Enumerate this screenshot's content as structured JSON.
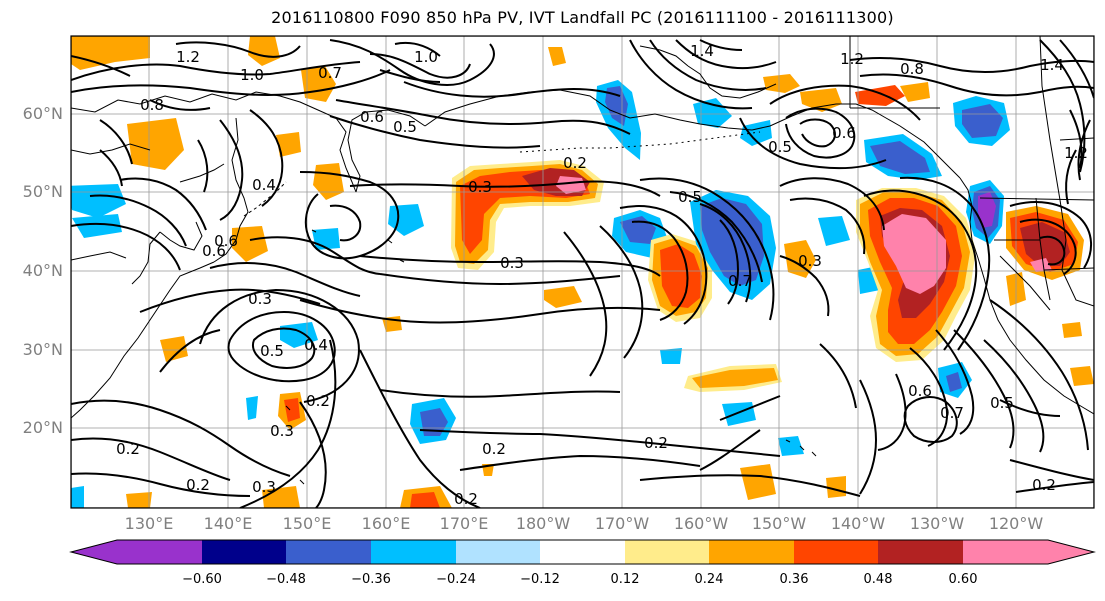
{
  "title": "2016110800 F090 850 hPa PV, IVT Landfall PC (2016111100 - 2016111300)",
  "lat_labels": [
    "60°N",
    "50°N",
    "40°N",
    "30°N",
    "20°N"
  ],
  "lon_labels": [
    "130°E",
    "140°E",
    "150°E",
    "160°E",
    "170°E",
    "180°W",
    "170°W",
    "160°W",
    "150°W",
    "140°W",
    "130°W",
    "120°W"
  ],
  "contour_labels": [
    "1.2",
    "1.0",
    "0.7",
    "1.0",
    "1.4",
    "1.2",
    "0.8",
    "1.4",
    "0.8",
    "0.6",
    "0.5",
    "0.5",
    "0.6",
    "0.3",
    "0.2",
    "0.5",
    "0.3",
    "0.4",
    "0.3",
    "0.6",
    "0.3",
    "0.5",
    "0.4",
    "0.2",
    "0.3",
    "0.2",
    "0.3",
    "0.2",
    "0.2",
    "0.2",
    "0.2",
    "0.7",
    "0.5",
    "0.2",
    "0.7",
    "0.6",
    "0.6",
    "1.2"
  ],
  "colorbar": {
    "ticks": [
      "−0.60",
      "−0.48",
      "−0.36",
      "−0.24",
      "−0.12",
      "0.12",
      "0.24",
      "0.36",
      "0.48",
      "0.60"
    ],
    "colors": [
      "#9932cc",
      "#00008b",
      "#3a5fcd",
      "#00bfff",
      "#b0e2ff",
      "#ffffff",
      "#ffec8b",
      "#ffa500",
      "#ff4500",
      "#b22222",
      "#ff82ab"
    ]
  },
  "colors": {
    "neg_0_12": "#b0e2ff",
    "neg_0_24": "#00bfff",
    "neg_0_36": "#3a5fcd",
    "neg_0_48": "#00008b",
    "neg_0_60": "#9932cc",
    "pos_0_12": "#ffec8b",
    "pos_0_24": "#ffa500",
    "pos_0_36": "#ff4500",
    "pos_0_48": "#b22222",
    "pos_0_60": "#ff82ab"
  }
}
